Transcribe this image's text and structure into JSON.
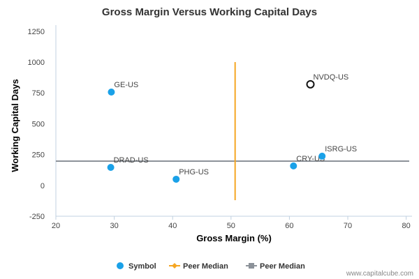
{
  "chart_data": {
    "type": "scatter",
    "title": "Gross Margin Versus Working Capital Days",
    "xlabel": "Gross Margin (%)",
    "ylabel": "Working Capital Days",
    "xlim": [
      20,
      81
    ],
    "ylim": [
      -250,
      1300
    ],
    "xticks": [
      "20",
      "30",
      "40",
      "50",
      "60",
      "70",
      "80"
    ],
    "yticks": [
      "-250",
      "0",
      "250",
      "500",
      "750",
      "1000",
      "1250"
    ],
    "grid": false,
    "legend_position": "bottom",
    "points": [
      {
        "label": "GE-US",
        "x": 29.5,
        "y": 757,
        "highlight": false
      },
      {
        "label": "DRAD-US",
        "x": 29.4,
        "y": 146,
        "highlight": false
      },
      {
        "label": "PHG-US",
        "x": 40.6,
        "y": 50,
        "highlight": false
      },
      {
        "label": "CRY-US",
        "x": 60.7,
        "y": 158,
        "highlight": false
      },
      {
        "label": "ISRG-US",
        "x": 65.6,
        "y": 237,
        "highlight": false
      },
      {
        "label": "NVDQ-US",
        "x": 63.6,
        "y": 820,
        "highlight": true
      }
    ],
    "peer_median_x": 50.7,
    "peer_median_y": 197,
    "legend": [
      {
        "label": "Symbol",
        "kind": "dot",
        "color": "#1aa1e8"
      },
      {
        "label": "Peer Median",
        "kind": "diamond-line",
        "color": "#f5a623"
      },
      {
        "label": "Peer Median",
        "kind": "square-line",
        "color": "#8c9299"
      }
    ],
    "colors": {
      "symbol": "#1aa1e8",
      "peer_median_vertical": "#f5a623",
      "peer_median_horizontal": "#8c9299",
      "highlight_stroke": "#111111"
    }
  },
  "credit": "www.capitalcube.com"
}
